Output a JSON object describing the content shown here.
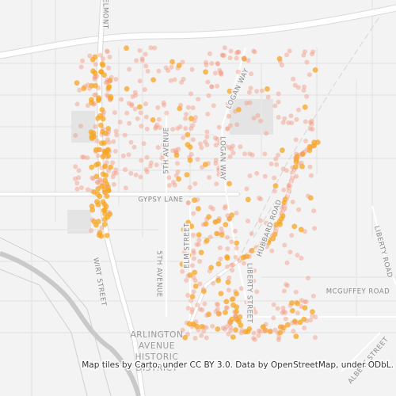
{
  "labels": [
    "BELMONT",
    "5TH AVENUE",
    "LOGAN WAY",
    "LOGAN WAY",
    "GYPSY LANE",
    "HUBBARD ROAD",
    "LIBERTY ROAD",
    "ELM STREET",
    "5TH AVENUE",
    "LIBERTY STREET",
    "WIRT STREET",
    "MCGUFFEY ROAD",
    "ALBERT STREET"
  ],
  "district": [
    "ARLINGTON",
    "AVENUE",
    "HISTORIC",
    "DISTRICT"
  ],
  "attribution": "Map tiles by Carto, under CC BY 3.0. Data by OpenStreetMap, under ODbL."
}
